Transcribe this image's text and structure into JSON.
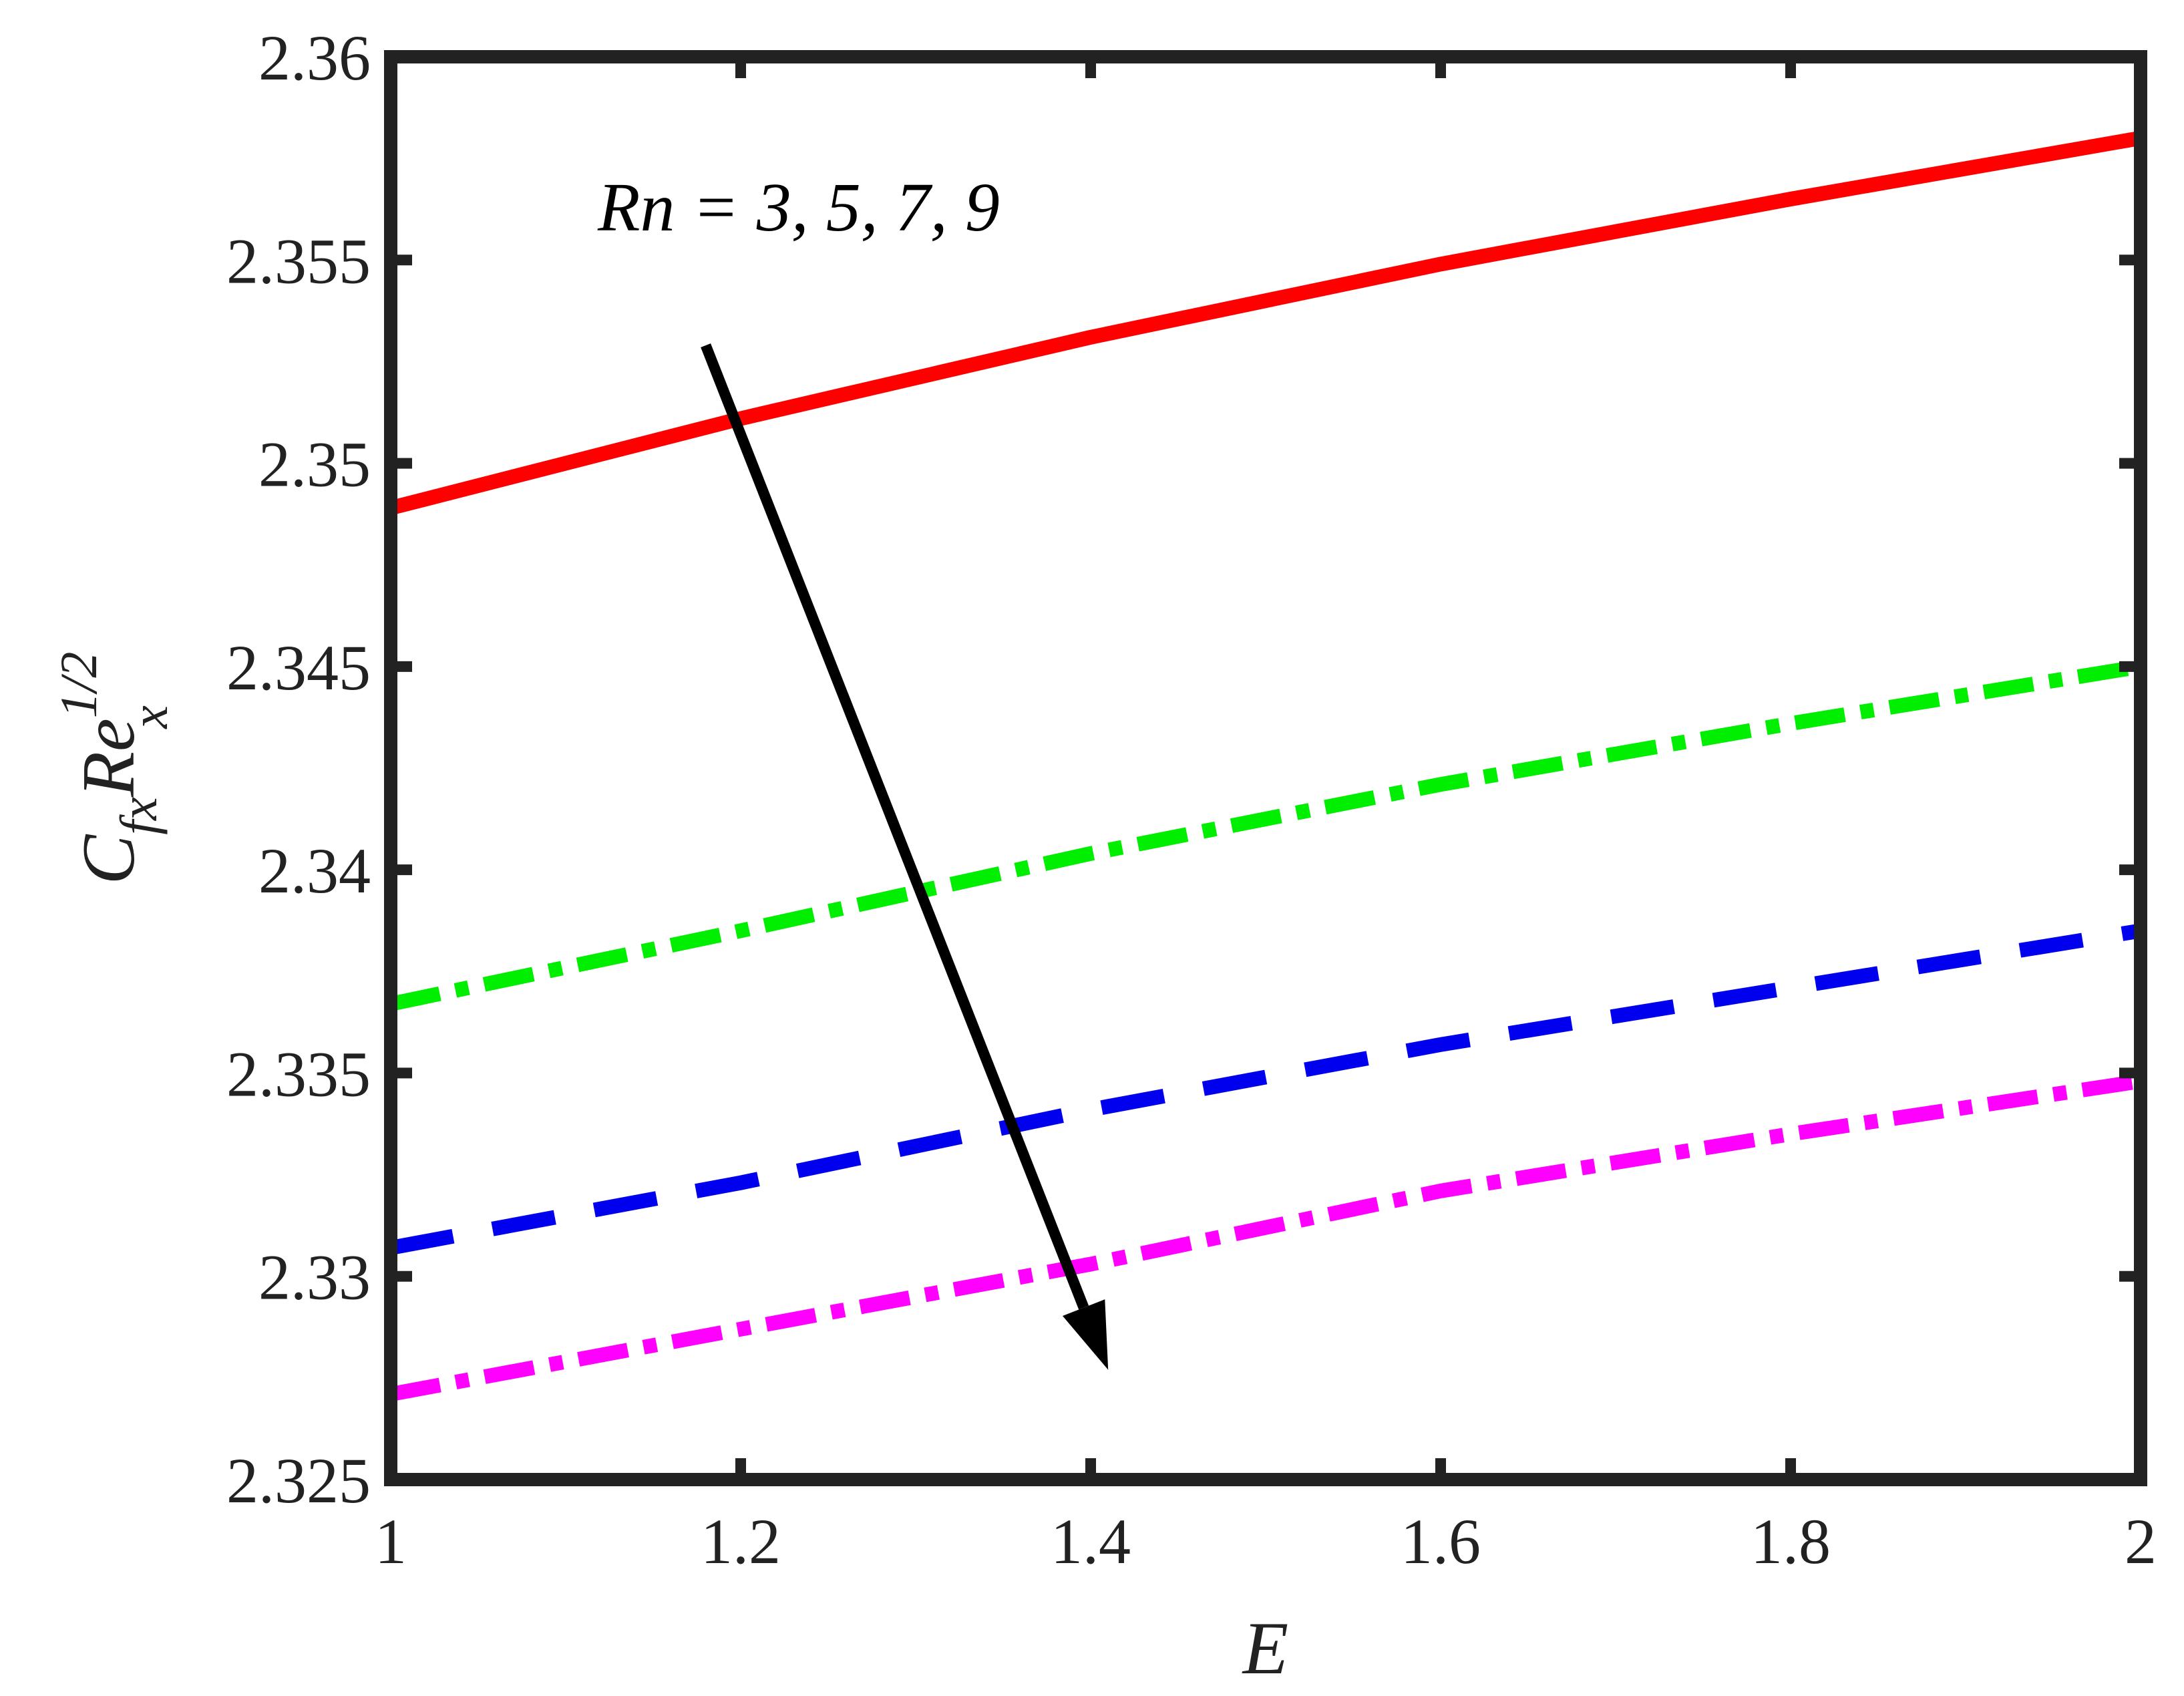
{
  "chart_data": {
    "type": "line",
    "title": "",
    "xlabel": "E",
    "ylabel": {
      "base": "C",
      "sub1": "fx",
      "mid": "Re",
      "sup": "1/2",
      "sub2": "x"
    },
    "xlim": [
      1,
      2
    ],
    "ylim": [
      2.325,
      2.36
    ],
    "xticks": [
      1,
      1.2,
      1.4,
      1.6,
      1.8,
      2
    ],
    "xtick_labels": [
      "1",
      "1.2",
      "1.4",
      "1.6",
      "1.8",
      "2"
    ],
    "yticks": [
      2.325,
      2.33,
      2.335,
      2.34,
      2.345,
      2.35,
      2.355,
      2.36
    ],
    "ytick_labels": [
      "2.325",
      "2.33",
      "2.335",
      "2.34",
      "2.345",
      "2.35",
      "2.355",
      "2.36"
    ],
    "grid": false,
    "legend": "none",
    "series": [
      {
        "color": "#ff0000",
        "style": "solid",
        "x": [
          1,
          1.2,
          1.4,
          1.6,
          1.8,
          2
        ],
        "y": [
          2.3489,
          2.3511,
          2.3531,
          2.3549,
          2.3565,
          2.358
        ]
      },
      {
        "color": "#00ee00",
        "style": "dash-dot",
        "x": [
          1,
          1.2,
          1.4,
          1.6,
          1.8,
          2
        ],
        "y": [
          2.3367,
          2.3385,
          2.3404,
          2.3421,
          2.3436,
          2.345
        ]
      },
      {
        "color": "#0000ee",
        "style": "dashed",
        "x": [
          1,
          1.2,
          1.4,
          1.6,
          1.8,
          2
        ],
        "y": [
          2.3307,
          2.3323,
          2.3341,
          2.3357,
          2.3371,
          2.3385
        ]
      },
      {
        "color": "#ff00ff",
        "style": "dash-dot",
        "x": [
          1,
          1.2,
          1.4,
          1.6,
          1.8,
          2
        ],
        "y": [
          2.3271,
          2.3287,
          2.3303,
          2.3321,
          2.3335,
          2.3348
        ]
      }
    ],
    "annotations": [
      {
        "text": "Rn = 3, 5, 7, 9",
        "arrow_from": [
          1.18,
          2.3529
        ],
        "arrow_to": [
          1.41,
          2.3277
        ],
        "color": "#000000"
      }
    ]
  }
}
